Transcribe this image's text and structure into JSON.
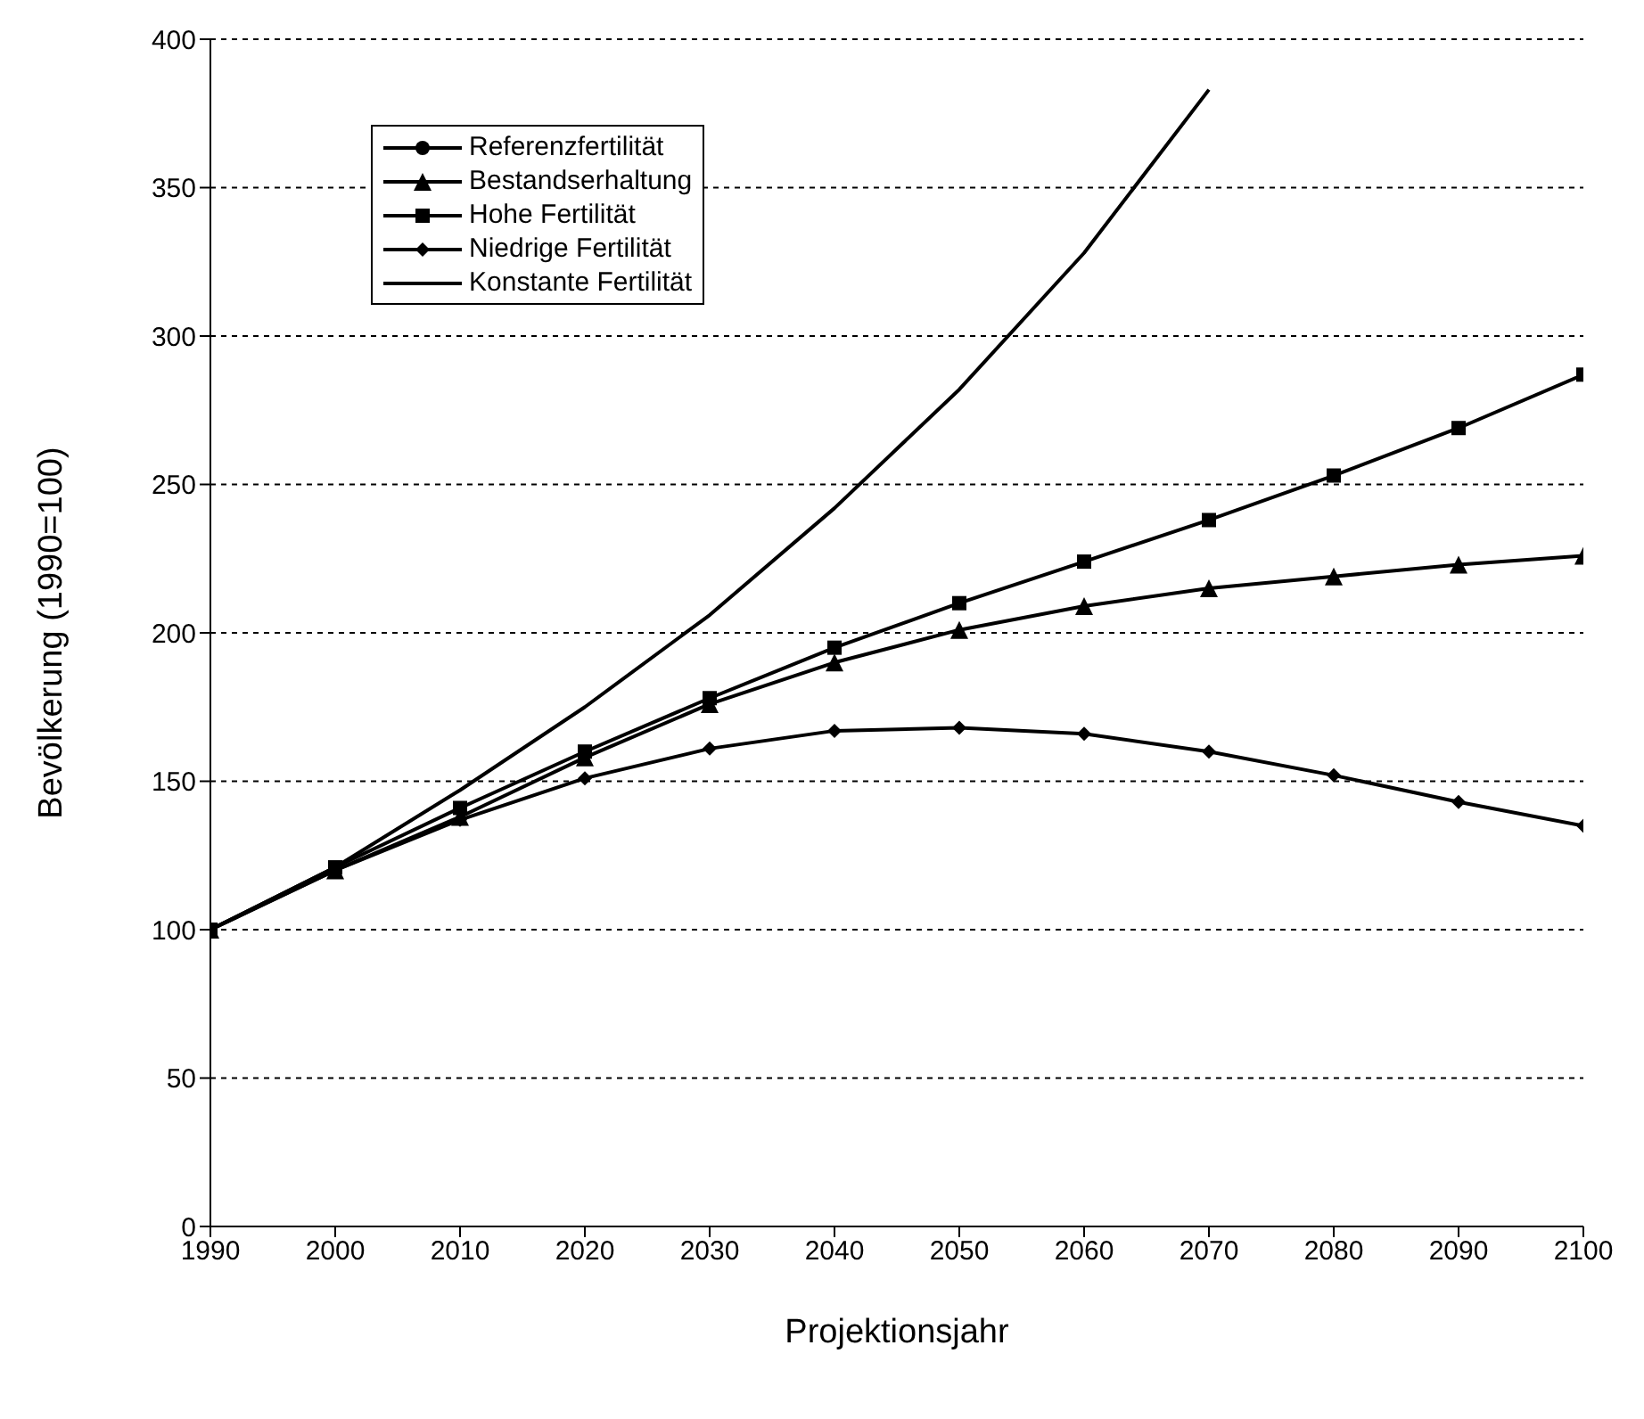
{
  "chart_data": {
    "type": "line",
    "xlabel": "Projektionsjahr",
    "ylabel": "Bevölkerung (1990=100)",
    "x": [
      1990,
      2000,
      2010,
      2020,
      2030,
      2040,
      2050,
      2060,
      2070,
      2080,
      2090,
      2100
    ],
    "xlim": [
      1990,
      2100
    ],
    "xticks": [
      1990,
      2000,
      2010,
      2020,
      2030,
      2040,
      2050,
      2060,
      2070,
      2080,
      2090,
      2100
    ],
    "ylim": [
      0,
      400
    ],
    "yticks": [
      0,
      50,
      100,
      150,
      200,
      250,
      300,
      350,
      400
    ],
    "grid": "y",
    "legend": "top left",
    "series": [
      {
        "name": "Referenzfertilität",
        "color": "#000000",
        "marker": "circle",
        "values": [
          null,
          null,
          null,
          null,
          null,
          null,
          null,
          null,
          null,
          null,
          null,
          null
        ]
      },
      {
        "name": "Bestandserhaltung",
        "color": "#000000",
        "marker": "triangle",
        "values": [
          100,
          120,
          138,
          158,
          176,
          190,
          201,
          209,
          215,
          219,
          223,
          226
        ]
      },
      {
        "name": "Hohe Fertilität",
        "color": "#000000",
        "marker": "square",
        "values": [
          100,
          121,
          141,
          160,
          178,
          195,
          210,
          224,
          238,
          253,
          269,
          287
        ]
      },
      {
        "name": "Niedrige Fertilität",
        "color": "#000000",
        "marker": "diamond",
        "values": [
          100,
          120,
          137,
          151,
          161,
          167,
          168,
          166,
          160,
          152,
          143,
          135
        ]
      },
      {
        "name": "Konstante Fertilität",
        "color": "#000000",
        "marker": "none",
        "values": [
          100,
          121,
          147,
          175,
          206,
          242,
          282,
          328,
          383,
          null,
          null,
          null
        ]
      }
    ]
  }
}
